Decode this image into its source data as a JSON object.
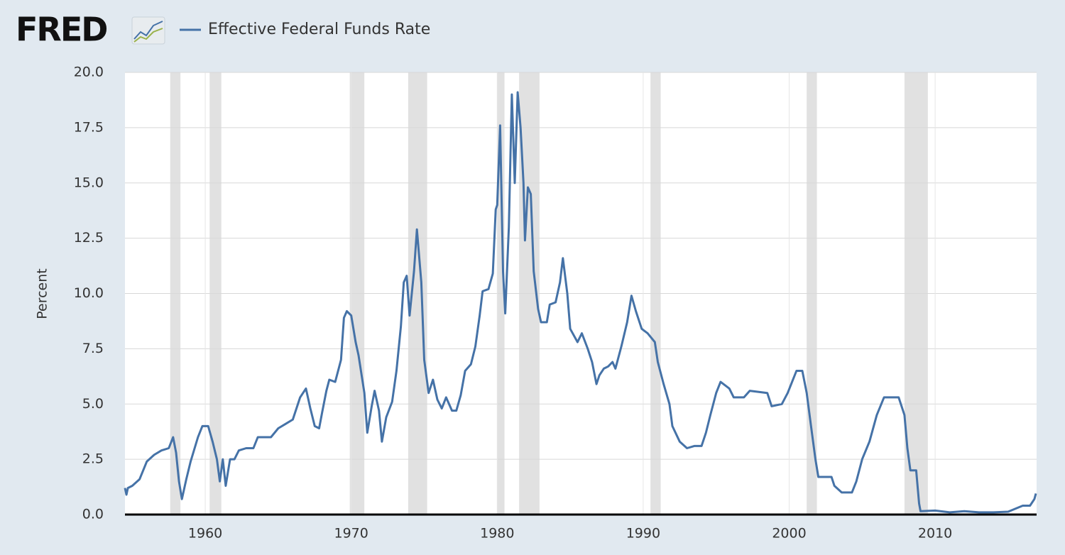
{
  "chart_data": {
    "type": "line",
    "logo": "FRED",
    "ylabel": "Percent",
    "xlim": [
      1954.5,
      2016.95
    ],
    "ylim": [
      0,
      20
    ],
    "xticks": [
      1960,
      1970,
      1980,
      1990,
      2000,
      2010
    ],
    "yticks": [
      {
        "value": 0,
        "label": "0.0"
      },
      2.5,
      {
        "value": 5,
        "label": "5.0"
      },
      7.5,
      {
        "value": 10,
        "label": "10.0"
      },
      12.5,
      {
        "value": 15,
        "label": "15.0"
      },
      17.5,
      {
        "value": 20,
        "label": "20.0"
      }
    ],
    "grid": true,
    "legend": "top-left",
    "recession_color": "#e1e1e1",
    "recessions": [
      [
        1957.6,
        1958.3
      ],
      [
        1960.3,
        1961.1
      ],
      [
        1969.9,
        1970.9
      ],
      [
        1973.9,
        1975.2
      ],
      [
        1980.0,
        1980.5
      ],
      [
        1981.5,
        1982.9
      ],
      [
        1990.5,
        1991.2
      ],
      [
        2001.2,
        2001.9
      ],
      [
        2007.9,
        2009.5
      ]
    ],
    "x": [
      1954.5,
      1954.6,
      1954.7,
      1955.0,
      1955.5,
      1956.0,
      1956.5,
      1957.0,
      1957.5,
      1957.8,
      1958.0,
      1958.2,
      1958.4,
      1958.7,
      1959.0,
      1959.5,
      1959.8,
      1960.2,
      1960.5,
      1960.8,
      1961.0,
      1961.2,
      1961.4,
      1961.7,
      1962.0,
      1962.3,
      1962.8,
      1963.3,
      1963.6,
      1964.5,
      1965.0,
      1965.5,
      1966.0,
      1966.5,
      1966.9,
      1967.2,
      1967.5,
      1967.8,
      1968.0,
      1968.3,
      1968.5,
      1968.9,
      1969.3,
      1969.5,
      1969.7,
      1970.0,
      1970.3,
      1970.5,
      1970.9,
      1971.1,
      1971.4,
      1971.6,
      1971.9,
      1972.1,
      1972.4,
      1972.8,
      1973.1,
      1973.4,
      1973.6,
      1973.8,
      1974.0,
      1974.3,
      1974.5,
      1974.8,
      1975.0,
      1975.3,
      1975.6,
      1975.9,
      1976.2,
      1976.5,
      1976.9,
      1977.2,
      1977.5,
      1977.8,
      1978.2,
      1978.5,
      1978.8,
      1979.0,
      1979.4,
      1979.7,
      1979.9,
      1980.0,
      1980.2,
      1980.4,
      1980.55,
      1980.8,
      1981.0,
      1981.2,
      1981.4,
      1981.6,
      1981.8,
      1981.9,
      1982.1,
      1982.3,
      1982.5,
      1982.8,
      1983.0,
      1983.4,
      1983.6,
      1984.0,
      1984.3,
      1984.5,
      1984.8,
      1985.0,
      1985.5,
      1985.8,
      1986.2,
      1986.5,
      1986.8,
      1987.0,
      1987.3,
      1987.6,
      1987.9,
      1988.1,
      1988.5,
      1988.9,
      1989.2,
      1989.5,
      1989.9,
      1990.3,
      1990.8,
      1991.0,
      1991.4,
      1991.8,
      1992.0,
      1992.5,
      1993.0,
      1993.5,
      1994.0,
      1994.3,
      1994.6,
      1995.0,
      1995.3,
      1995.9,
      1996.2,
      1996.9,
      1997.3,
      1998.5,
      1998.8,
      1999.5,
      1999.9,
      2000.2,
      2000.5,
      2000.9,
      2001.2,
      2001.5,
      2001.8,
      2002.0,
      2002.9,
      2003.1,
      2003.6,
      2004.3,
      2004.6,
      2005.0,
      2005.5,
      2006.0,
      2006.5,
      2007.5,
      2007.9,
      2008.1,
      2008.3,
      2008.7,
      2008.9,
      2009.0,
      2010.0,
      2011.0,
      2012.0,
      2013.0,
      2014.0,
      2015.0,
      2016.0,
      2016.5,
      2016.8,
      2016.9
    ],
    "series": [
      {
        "name": "Effective Federal Funds Rate",
        "color": "#4572a7",
        "values": [
          1.2,
          0.9,
          1.2,
          1.3,
          1.6,
          2.4,
          2.7,
          2.9,
          3.0,
          3.5,
          2.8,
          1.5,
          0.7,
          1.6,
          2.4,
          3.5,
          4.0,
          4.0,
          3.3,
          2.5,
          1.5,
          2.5,
          1.3,
          2.5,
          2.5,
          2.9,
          3.0,
          3.0,
          3.5,
          3.5,
          3.9,
          4.1,
          4.3,
          5.3,
          5.7,
          4.8,
          4.0,
          3.9,
          4.6,
          5.6,
          6.1,
          6.0,
          7.0,
          8.9,
          9.2,
          9.0,
          7.8,
          7.2,
          5.5,
          3.7,
          4.9,
          5.6,
          4.7,
          3.3,
          4.4,
          5.1,
          6.5,
          8.5,
          10.5,
          10.8,
          9.0,
          11.0,
          12.9,
          10.5,
          7.0,
          5.5,
          6.1,
          5.2,
          4.8,
          5.3,
          4.7,
          4.7,
          5.4,
          6.5,
          6.8,
          7.6,
          9.0,
          10.1,
          10.2,
          10.9,
          13.8,
          14.0,
          17.6,
          11.0,
          9.1,
          13.0,
          19.0,
          15.0,
          19.1,
          17.5,
          15.0,
          12.4,
          14.8,
          14.5,
          11.0,
          9.3,
          8.7,
          8.7,
          9.5,
          9.6,
          10.5,
          11.6,
          10.0,
          8.4,
          7.8,
          8.2,
          7.5,
          6.9,
          5.9,
          6.3,
          6.6,
          6.7,
          6.9,
          6.6,
          7.6,
          8.7,
          9.9,
          9.2,
          8.4,
          8.2,
          7.8,
          6.9,
          5.9,
          5.0,
          4.0,
          3.3,
          3.0,
          3.1,
          3.1,
          3.7,
          4.5,
          5.5,
          6.0,
          5.7,
          5.3,
          5.3,
          5.6,
          5.5,
          4.9,
          5.0,
          5.5,
          6.0,
          6.5,
          6.5,
          5.5,
          4.0,
          2.5,
          1.7,
          1.7,
          1.3,
          1.0,
          1.0,
          1.5,
          2.5,
          3.3,
          4.5,
          5.3,
          5.3,
          4.5,
          3.0,
          2.0,
          2.0,
          0.5,
          0.15,
          0.18,
          0.1,
          0.15,
          0.1,
          0.1,
          0.13,
          0.4,
          0.4,
          0.7,
          0.95
        ]
      }
    ]
  }
}
